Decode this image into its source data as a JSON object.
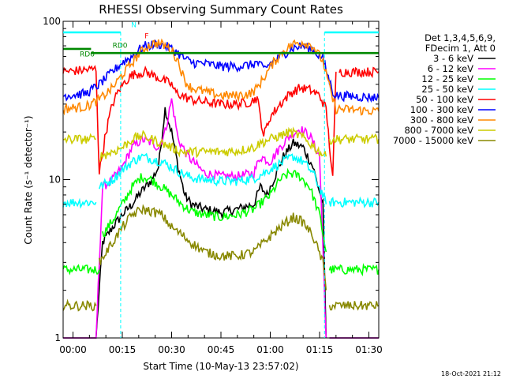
{
  "chart_data": {
    "type": "line",
    "title": "RHESSI Observing Summary Count Rates",
    "xlabel": "Start Time (10-May-13 23:57:02)",
    "ylabel": "Count Rate (s⁻¹ detector⁻¹)",
    "y_scale": "log",
    "ylim": [
      1,
      100
    ],
    "xlim_minutes": [
      -3,
      93
    ],
    "x_tick_labels": [
      "00:00",
      "00:15",
      "00:30",
      "00:45",
      "01:00",
      "01:15",
      "01:30"
    ],
    "x_tick_minutes": [
      0,
      15,
      30,
      45,
      60,
      75,
      90
    ],
    "y_tick_labels": [
      "1",
      "10",
      "100"
    ],
    "y_tick_values": [
      1,
      10,
      100
    ],
    "legend_placement": "right",
    "legend_header": [
      "Det 1,3,4,5,6,9,",
      "FDecim 1, Att 0"
    ],
    "footer_date": "18-Oct-2021 21:12",
    "annotations": [
      {
        "text": "N",
        "minute": 18.5,
        "value": 92,
        "color": "#00ffff"
      },
      {
        "text": "RD0",
        "minute": 14.3,
        "value": 68,
        "color": "#008800"
      },
      {
        "text": "RD6",
        "minute": 4.3,
        "value": 60,
        "color": "#008800"
      },
      {
        "text": "F",
        "minute": 22.4,
        "value": 78,
        "color": "#ff0000"
      }
    ],
    "night_intervals": [
      [
        -3,
        14.5
      ],
      [
        76.5,
        93
      ]
    ],
    "series": [
      {
        "name": "3 - 6 keV",
        "color": "#000000",
        "segments": [
          {
            "x": [
              -3,
              7,
              9,
              12,
              15,
              18,
              20,
              22,
              24,
              26,
              28,
              30,
              32,
              34,
              36,
              40,
              45,
              50,
              55,
              57,
              59,
              61,
              64,
              67,
              70,
              73,
              76,
              77
            ],
            "y": [
              1,
              1,
              4,
              5,
              6,
              7,
              8,
              9,
              10,
              12,
              28,
              20,
              12,
              8,
              7,
              6.5,
              6.2,
              6.5,
              7,
              9,
              8,
              10,
              14,
              17,
              16,
              12,
              7,
              1
            ]
          },
          {
            "x": [
              78,
              93
            ],
            "y": [
              1,
              1
            ]
          }
        ]
      },
      {
        "name": "6 - 12 keV",
        "color": "#ff00ff",
        "segments": [
          {
            "x": [
              -3,
              7,
              9,
              12,
              15,
              18,
              21,
              24,
              26,
              28,
              30,
              32,
              35,
              40,
              45,
              50,
              55,
              57,
              60,
              63,
              66,
              69,
              72,
              75,
              77
            ],
            "y": [
              1,
              1,
              9,
              10,
              12,
              16,
              18,
              17,
              16,
              20,
              32,
              18,
              14,
              11,
              10.5,
              10.5,
              11,
              14,
              13,
              16,
              19,
              21,
              19,
              14,
              1
            ]
          },
          {
            "x": [
              78,
              93
            ],
            "y": [
              1,
              1
            ]
          }
        ]
      },
      {
        "name": "12 - 25 keV",
        "color": "#00ff00",
        "segments": [
          {
            "x": [
              -3,
              8
            ],
            "y": [
              2.7,
              2.7
            ]
          },
          {
            "x": [
              9,
              12,
              15,
              18,
              21,
              24,
              27,
              30,
              33,
              36,
              40,
              45,
              50,
              55,
              60,
              63,
              66,
              69,
              72,
              75,
              77
            ],
            "y": [
              4.5,
              5.5,
              7,
              9,
              10.5,
              10,
              9,
              8,
              7,
              6.3,
              6,
              5.8,
              6,
              6.5,
              8,
              10,
              11,
              10.5,
              9,
              6,
              3.5
            ]
          },
          {
            "x": [
              78,
              93
            ],
            "y": [
              2.7,
              2.7
            ]
          }
        ]
      },
      {
        "name": "25 - 50 keV",
        "color": "#00ffff",
        "segments": [
          {
            "x": [
              -3,
              7
            ],
            "y": [
              7.2,
              7.2
            ]
          },
          {
            "x": [
              8,
              12,
              15,
              18,
              21,
              24,
              27,
              30,
              33,
              36,
              40,
              45,
              50,
              55,
              58,
              61,
              64,
              67,
              70,
              73,
              76,
              77
            ],
            "y": [
              9,
              10,
              11.5,
              13,
              14,
              13.5,
              13,
              12,
              11,
              10.3,
              10,
              9.8,
              9.8,
              10.2,
              11,
              12,
              13,
              14,
              13,
              11,
              8,
              7
            ]
          },
          {
            "x": [
              78,
              93
            ],
            "y": [
              7.2,
              7.2
            ]
          }
        ]
      },
      {
        "name": "50 - 100 keV",
        "color": "#ff0000",
        "segments": [
          {
            "x": [
              -3,
              7,
              8,
              10,
              12,
              14,
              16,
              18,
              20,
              22,
              24,
              26,
              28,
              30,
              31,
              33,
              36,
              40,
              45,
              50,
              54,
              56,
              58,
              60,
              63,
              66,
              69,
              72,
              75,
              77,
              79,
              80
            ],
            "y": [
              48,
              50,
              11,
              20,
              30,
              37,
              42,
              46,
              47,
              48,
              46,
              44,
              42,
              40,
              36,
              34,
              32,
              31,
              30,
              30,
              31,
              33,
              19,
              25,
              30,
              35,
              38,
              37,
              34,
              28,
              10,
              48
            ]
          },
          {
            "x": [
              81,
              93
            ],
            "y": [
              48,
              48
            ]
          }
        ]
      },
      {
        "name": "100 - 300 keV",
        "color": "#0000ff",
        "segments": [
          {
            "x": [
              -3,
              4,
              8,
              12,
              15,
              18,
              20,
              22,
              24,
              26,
              28,
              30,
              32,
              34,
              36,
              40,
              45,
              50,
              54,
              56,
              58,
              61,
              64,
              67,
              70,
              73,
              76,
              79,
              80,
              93
            ],
            "y": [
              34,
              35,
              40,
              48,
              55,
              60,
              66,
              70,
              71,
              72,
              70,
              67,
              63,
              58,
              55,
              54,
              52,
              52,
              53,
              55,
              50,
              56,
              62,
              68,
              70,
              66,
              58,
              36,
              34,
              33
            ]
          }
        ]
      },
      {
        "name": "300 - 800 keV",
        "color": "#ff8800",
        "segments": [
          {
            "x": [
              -3,
              4,
              8,
              12,
              15,
              18,
              20,
              22,
              24,
              26,
              28,
              30,
              32,
              34,
              36,
              40,
              45,
              50,
              54,
              56,
              58,
              61,
              64,
              67,
              70,
              73,
              76,
              79,
              80,
              93
            ],
            "y": [
              28,
              29,
              32,
              38,
              46,
              55,
              62,
              68,
              72,
              73,
              70,
              66,
              56,
              42,
              38,
              36,
              34,
              34,
              35,
              38,
              44,
              55,
              65,
              72,
              74,
              70,
              56,
              32,
              28,
              27
            ]
          }
        ]
      },
      {
        "name": "800 - 7000 keV",
        "color": "#cccc00",
        "segments": [
          {
            "x": [
              -3,
              7
            ],
            "y": [
              18,
              18
            ]
          },
          {
            "x": [
              8,
              12,
              15,
              18,
              21,
              24,
              27,
              30,
              33,
              36,
              40,
              45,
              50,
              55,
              57,
              60,
              63,
              66,
              69,
              72,
              75,
              77
            ],
            "y": [
              14,
              15,
              16,
              18,
              19,
              18,
              17,
              16,
              15,
              15,
              15,
              15,
              15.2,
              16,
              17,
              18,
              19,
              20,
              19,
              17,
              15,
              14
            ]
          },
          {
            "x": [
              78,
              93
            ],
            "y": [
              18,
              18
            ]
          }
        ]
      },
      {
        "name": "7000 - 15000 keV",
        "color": "#888800",
        "segments": [
          {
            "x": [
              -3,
              7
            ],
            "y": [
              1.6,
              1.6
            ]
          },
          {
            "x": [
              8,
              12,
              15,
              18,
              21,
              24,
              27,
              30,
              33,
              36,
              40,
              45,
              50,
              55,
              58,
              61,
              64,
              67,
              70,
              73,
              76,
              77
            ],
            "y": [
              3,
              4,
              5,
              6,
              6.5,
              6.3,
              6,
              5,
              4.5,
              4,
              3.5,
              3.3,
              3.3,
              3.5,
              4,
              4.6,
              5.2,
              5.8,
              5.4,
              4.4,
              3,
              2
            ]
          },
          {
            "x": [
              78,
              93
            ],
            "y": [
              1.6,
              1.6
            ]
          }
        ]
      },
      {
        "name": "",
        "color": "#008800",
        "segments": [
          {
            "x": [
              -3,
              5.5
            ],
            "y": [
              67,
              67
            ]
          },
          {
            "x": [
              5.5,
              93
            ],
            "y": [
              63,
              63
            ]
          }
        ]
      }
    ]
  }
}
